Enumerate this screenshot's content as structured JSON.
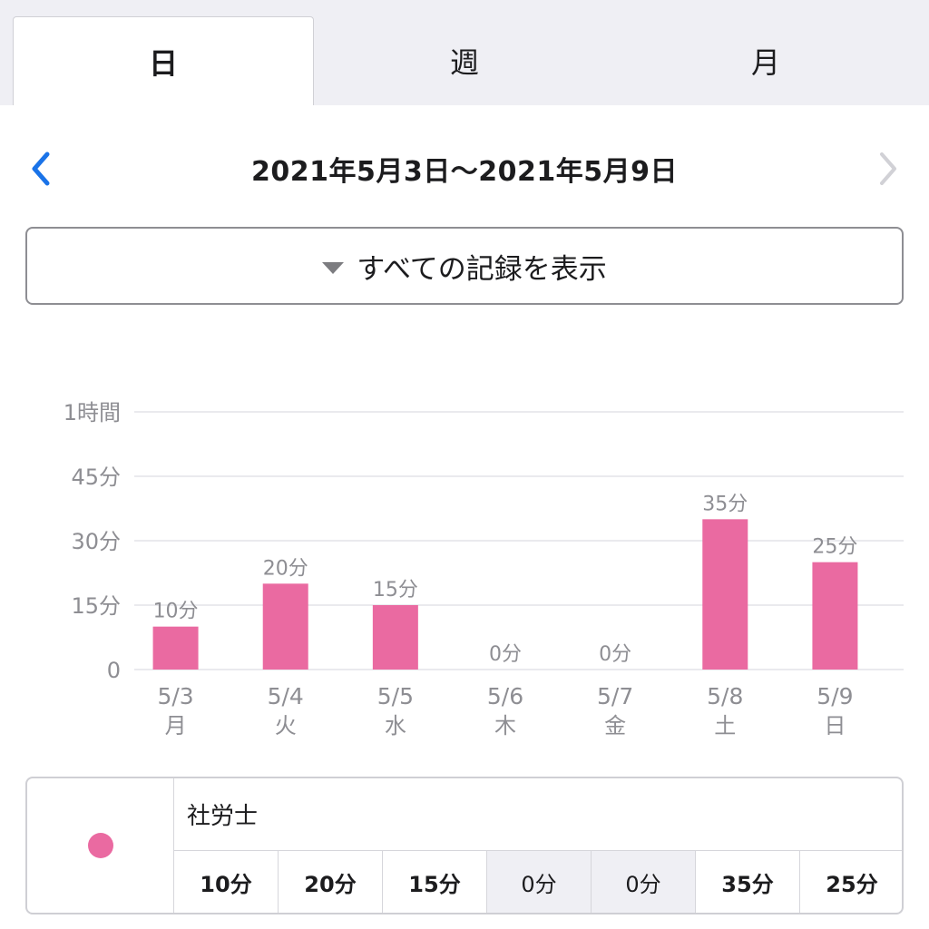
{
  "tabs": [
    {
      "label": "日",
      "active": true
    },
    {
      "label": "週",
      "active": false
    },
    {
      "label": "月",
      "active": false
    }
  ],
  "date_nav": {
    "range": "2021年5月3日〜2021年5月9日",
    "prev_icon": "chevron-left-icon",
    "next_icon": "chevron-right-icon",
    "prev_color": "#1a73e8",
    "next_color": "#d1d1d6"
  },
  "filter": {
    "label": "すべての記録を表示",
    "icon": "triangle-down-icon"
  },
  "colors": {
    "bar": "#ea6aa1",
    "grid": "#e3e3e8",
    "axis_text": "#8e8e93"
  },
  "chart_data": {
    "type": "bar",
    "y_ticks": [
      {
        "value": 0,
        "label": "0"
      },
      {
        "value": 15,
        "label": "15分"
      },
      {
        "value": 30,
        "label": "30分"
      },
      {
        "value": 45,
        "label": "45分"
      },
      {
        "value": 60,
        "label": "1時間"
      }
    ],
    "ylim": [
      0,
      60
    ],
    "categories": [
      {
        "date": "5/3",
        "weekday": "月"
      },
      {
        "date": "5/4",
        "weekday": "火"
      },
      {
        "date": "5/5",
        "weekday": "水"
      },
      {
        "date": "5/6",
        "weekday": "木"
      },
      {
        "date": "5/7",
        "weekday": "金"
      },
      {
        "date": "5/8",
        "weekday": "土"
      },
      {
        "date": "5/9",
        "weekday": "日"
      }
    ],
    "series": [
      {
        "name": "社労士",
        "values": [
          10,
          20,
          15,
          0,
          0,
          35,
          25
        ],
        "labels": [
          "10分",
          "20分",
          "15分",
          "0分",
          "0分",
          "35分",
          "25分"
        ]
      }
    ],
    "grid": true
  },
  "summary": {
    "series_name": "社労士",
    "values": [
      "10分",
      "20分",
      "15分",
      "0分",
      "0分",
      "35分",
      "25分"
    ]
  }
}
